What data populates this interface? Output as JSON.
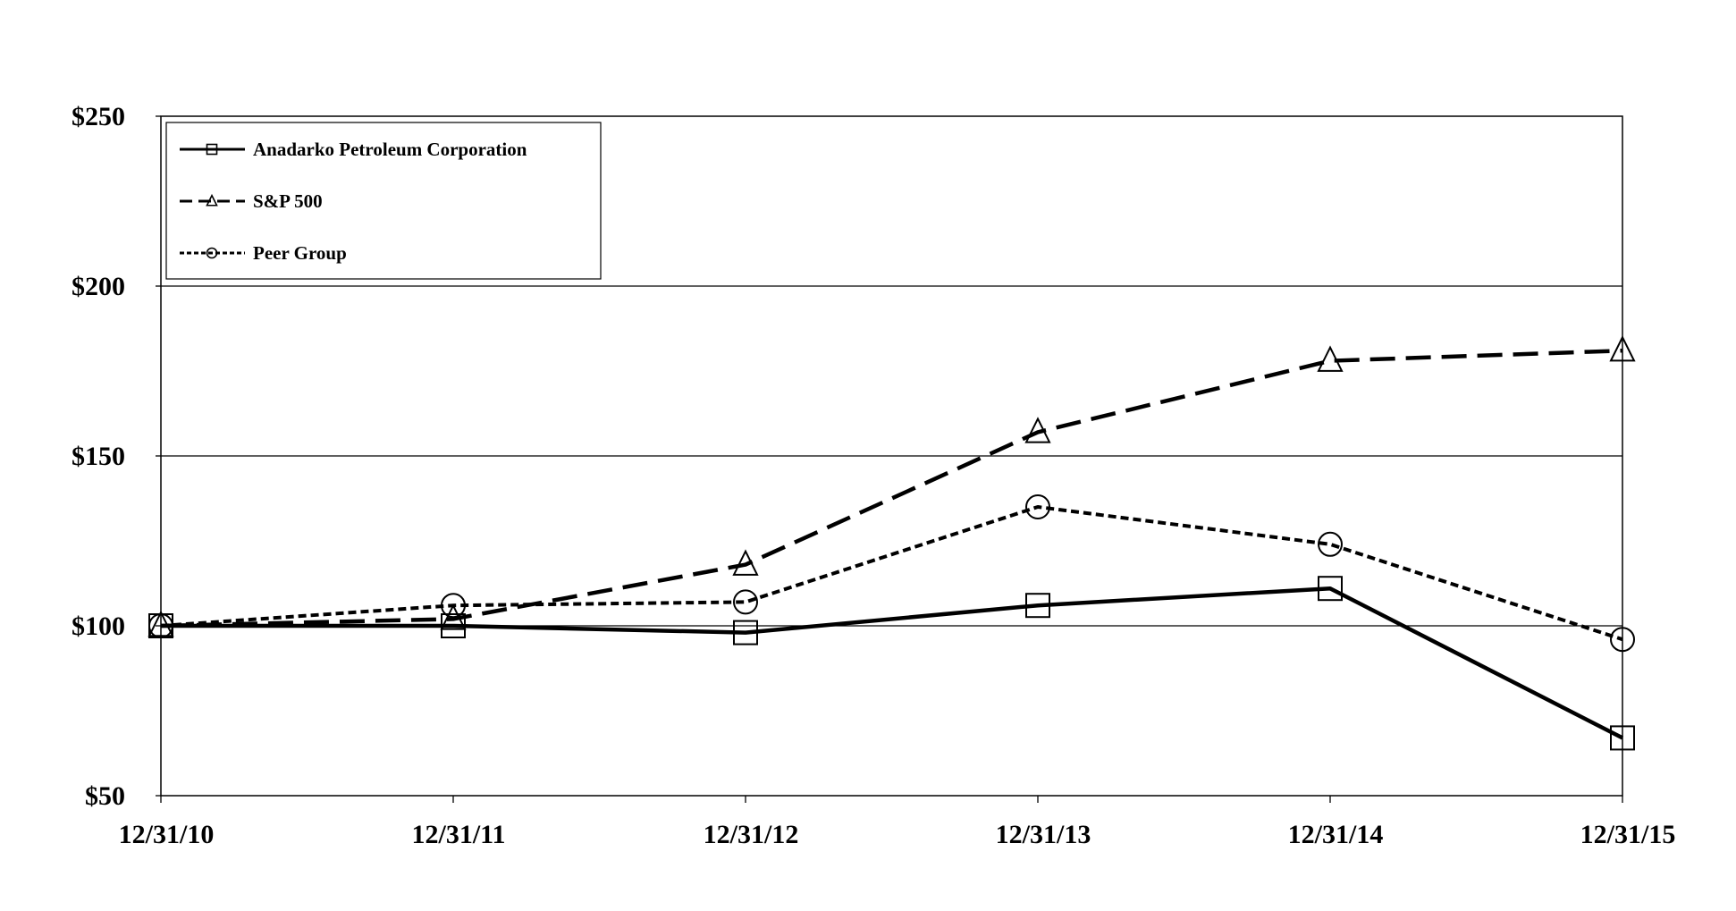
{
  "chart_data": {
    "type": "line",
    "categories": [
      "12/31/10",
      "12/31/11",
      "12/31/12",
      "12/31/13",
      "12/31/14",
      "12/31/15"
    ],
    "series": [
      {
        "name": "Anadarko Petroleum Corporation",
        "marker": "square",
        "dash": "solid",
        "values": [
          100,
          100,
          98,
          106,
          111,
          67
        ]
      },
      {
        "name": "S&P 500",
        "marker": "triangle",
        "dash": "long-dash",
        "values": [
          100,
          102,
          118,
          157,
          178,
          181
        ]
      },
      {
        "name": "Peer Group",
        "marker": "circle",
        "dash": "short-dash",
        "values": [
          100,
          106,
          107,
          135,
          124,
          96
        ]
      }
    ],
    "y_ticks": [
      "$50",
      "$100",
      "$150",
      "$200",
      "$250"
    ],
    "ylim": [
      50,
      250
    ],
    "grid": "horizontal",
    "legend_position": "top-left",
    "colors": {
      "line": "#000000",
      "background": "#ffffff"
    }
  }
}
